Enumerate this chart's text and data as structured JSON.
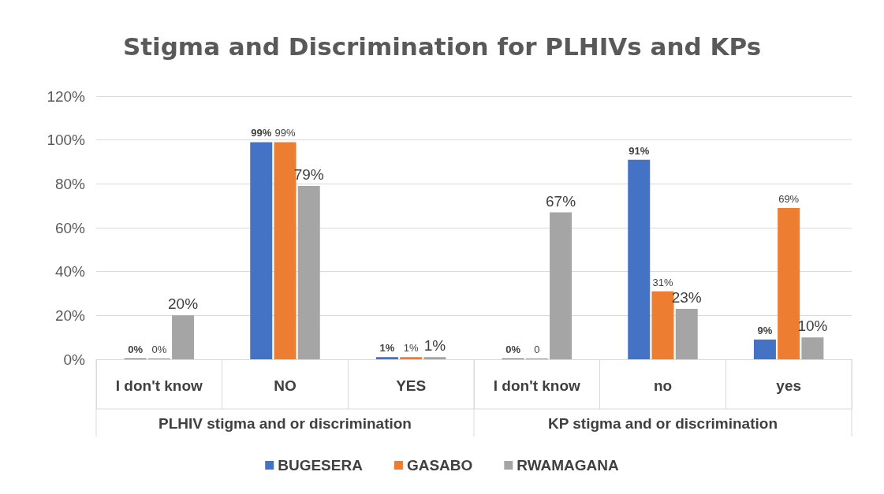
{
  "chart_data": {
    "type": "bar",
    "title": "Stigma and Discrimination for PLHIVs and KPs",
    "categories": [
      "I don't know",
      "NO",
      "YES",
      "I don't know",
      "no",
      "yes"
    ],
    "annotations": [
      "PLHIV stigma and or discrimination",
      "KP stigma and or discrimination"
    ],
    "series": [
      {
        "name": "BUGESERA",
        "color": "#4472c4",
        "values": [
          0,
          99,
          1,
          0,
          91,
          9
        ],
        "value_labels": [
          "0%",
          "99%",
          "1%",
          "0%",
          "91%",
          "9%"
        ]
      },
      {
        "name": "GASABO",
        "color": "#ed7d31",
        "values": [
          0,
          99,
          1,
          0,
          31,
          69
        ],
        "value_labels": [
          "0%",
          "99%",
          "1%",
          "0",
          "31%",
          "69%"
        ]
      },
      {
        "name": "RWAMAGANA",
        "color": "#a5a5a5",
        "values": [
          20,
          79,
          1,
          67,
          23,
          10
        ],
        "value_labels": [
          "20%",
          "79%",
          "1%",
          "67%",
          "23%",
          "10%"
        ]
      }
    ],
    "ylim": [
      0,
      120
    ],
    "yticks": [
      {
        "value": 0,
        "label": "0%"
      },
      {
        "value": 20,
        "label": "20%"
      },
      {
        "value": 40,
        "label": "40%"
      },
      {
        "value": 60,
        "label": "60%"
      },
      {
        "value": 80,
        "label": "80%"
      },
      {
        "value": 100,
        "label": "100%"
      },
      {
        "value": 120,
        "label": "120%"
      }
    ],
    "grid": "y",
    "legend": "bottom"
  }
}
